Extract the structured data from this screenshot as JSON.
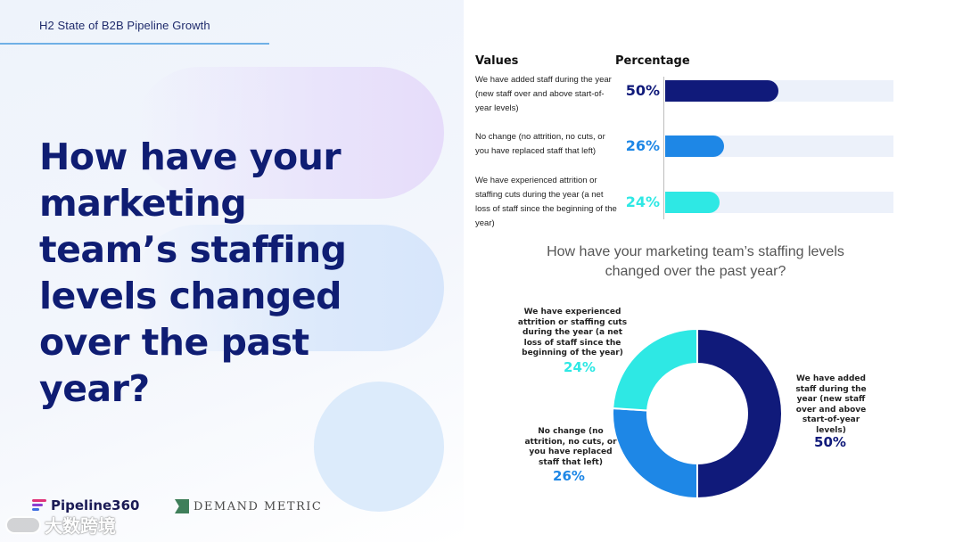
{
  "header": {
    "report_label": "H2 State of B2B Pipeline Growth"
  },
  "headline": "How have your marketing team’s staffing levels changed over the past year?",
  "logos": {
    "pipeline": "Pipeline360",
    "demand_metric": "DEMAND METRIC",
    "watermark": "大数跨境"
  },
  "colors": {
    "navy": "#101a7a",
    "blue": "#1e87e6",
    "cyan": "#2ee8e4",
    "headline": "#0f1d73"
  },
  "chart_data": [
    {
      "type": "bar",
      "orientation": "horizontal",
      "column_headers": [
        "Values",
        "Percentage"
      ],
      "categories": [
        "We have added staff during the year (new staff over and above start-of-year levels)",
        "No change (no attrition, no cuts, or you have replaced staff that left)",
        "We have experienced attrition or staffing cuts during the year (a net loss of staff since the beginning of the year)"
      ],
      "values": [
        50,
        26,
        24
      ],
      "value_labels": [
        "50%",
        "26%",
        "24%"
      ],
      "xlim": [
        0,
        100
      ],
      "colors": [
        "#101a7a",
        "#1e87e6",
        "#2ee8e4"
      ]
    },
    {
      "type": "pie",
      "donut": true,
      "title": "How have your marketing team’s staffing levels changed over the past year?",
      "slices": [
        {
          "label": "We have added staff during the year (new staff over and above start-of-year levels)",
          "value": 50,
          "value_label": "50%",
          "color": "#101a7a"
        },
        {
          "label": "No change (no attrition, no cuts, or you have replaced staff that left)",
          "value": 26,
          "value_label": "26%",
          "color": "#1e87e6"
        },
        {
          "label": "We have experienced attrition or staffing cuts during the year (a net loss of staff since the beginning of the year)",
          "value": 24,
          "value_label": "24%",
          "color": "#2ee8e4"
        }
      ]
    }
  ]
}
